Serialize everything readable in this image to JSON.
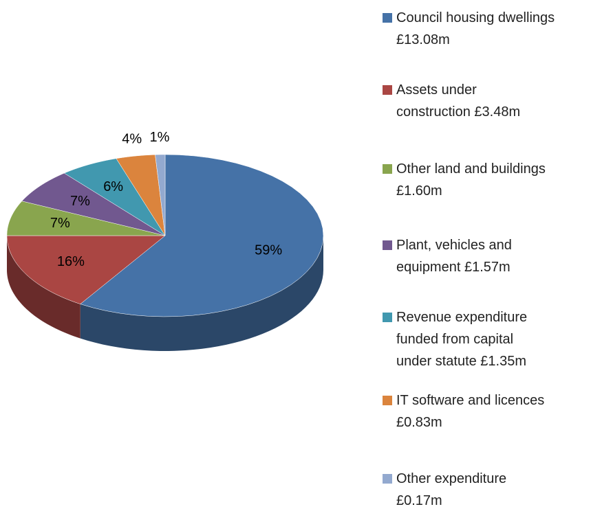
{
  "chart_data": {
    "type": "pie",
    "categories": [
      "Council housing dwellings £13.08m",
      "Assets under construction £3.48m",
      "Other land and buildings £1.60m",
      "Plant, vehicles and equipment £1.57m",
      "Revenue expenditure funded from capital under statute £1.35m",
      "IT software and licences £0.83m",
      "Other expenditure £0.17m"
    ],
    "values": [
      59,
      16,
      7,
      7,
      6,
      4,
      1
    ],
    "value_labels": [
      "59%",
      "16%",
      "7%",
      "7%",
      "6%",
      "4%",
      "1%"
    ],
    "colors": [
      "#4572a7",
      "#aa4643",
      "#89a54e",
      "#71588f",
      "#4198af",
      "#db843d",
      "#93a9cf"
    ],
    "legend": "right"
  }
}
